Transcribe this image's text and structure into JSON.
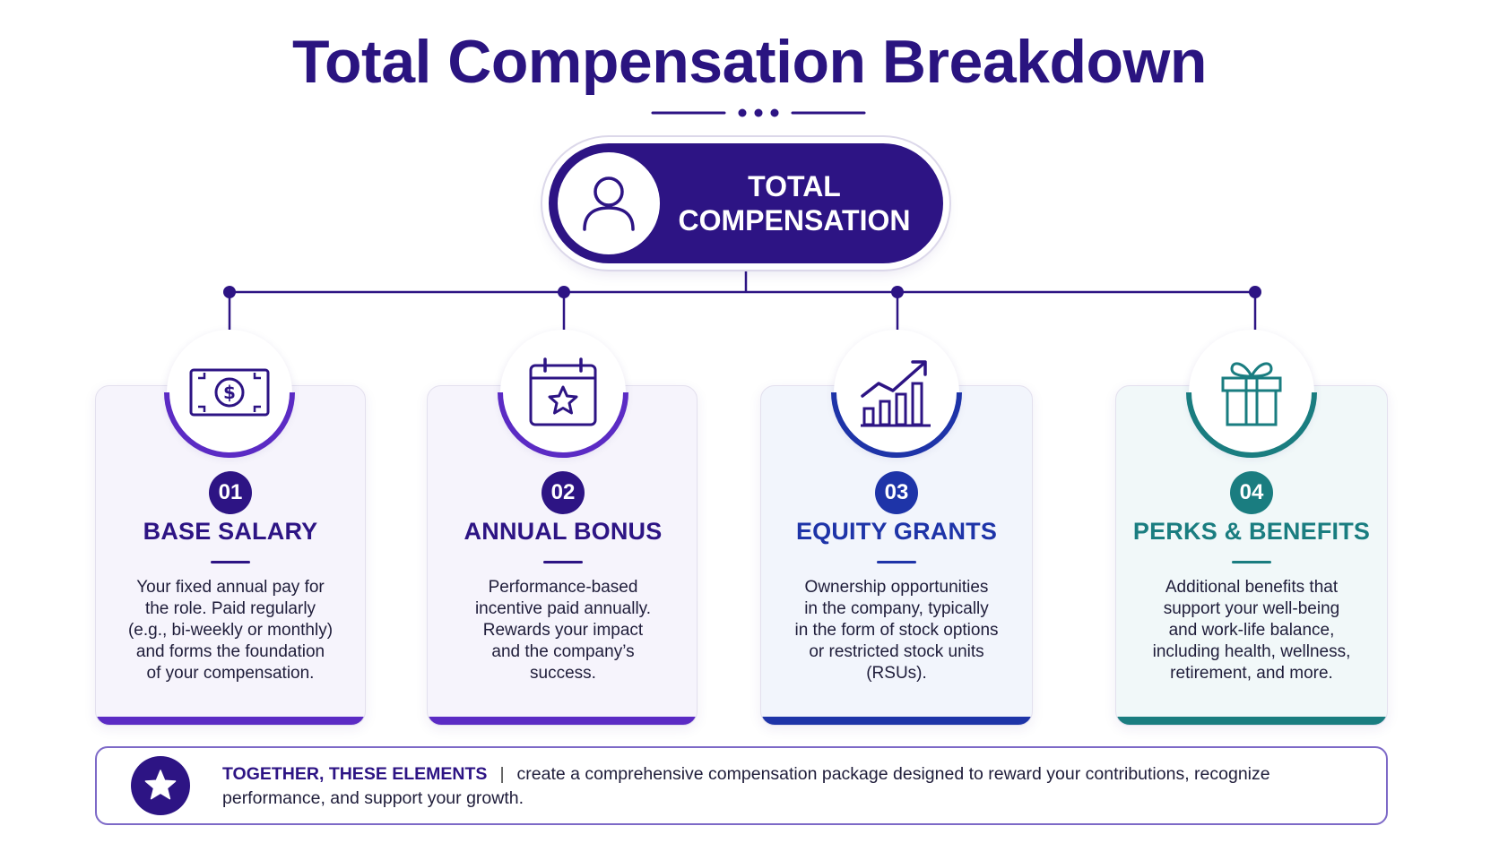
{
  "title": "Total Compensation Breakdown",
  "root": {
    "label": "TOTAL\nCOMPENSATION",
    "icon": "user-icon"
  },
  "colors": {
    "primary": "#2d1484",
    "purple_accent": "#5b2bc4",
    "blue_accent": "#1e34a8",
    "teal_accent": "#1a7d80",
    "connector": "#2d1484"
  },
  "components": [
    {
      "number": "01",
      "title": "BASE SALARY",
      "icon": "money-bill-icon",
      "description": "Your fixed annual pay for\nthe role. Paid regularly\n(e.g., bi-weekly or monthly)\nand forms the foundation\nof your compensation.",
      "accent": "#5b2bc4"
    },
    {
      "number": "02",
      "title": "ANNUAL BONUS",
      "icon": "calendar-star-icon",
      "description": "Performance-based\nincentive paid annually.\nRewards your impact\nand the company’s\nsuccess.",
      "accent": "#5b2bc4"
    },
    {
      "number": "03",
      "title": "EQUITY GRANTS",
      "icon": "growth-chart-icon",
      "description": "Ownership opportunities\nin the company, typically\nin the form of stock options\nor restricted stock units\n(RSUs).",
      "accent": "#1e34a8"
    },
    {
      "number": "04",
      "title": "PERKS & BENEFITS",
      "icon": "gift-icon",
      "description": "Additional benefits that\nsupport your well-being\nand work-life balance,\nincluding health, wellness,\nretirement, and more.",
      "accent": "#1a7d80"
    }
  ],
  "footer": {
    "lead": "TOGETHER, THESE ELEMENTS",
    "separator": "|",
    "text": "create a comprehensive compensation package designed to reward your contributions, recognize performance, and support your growth.",
    "icon": "star-icon"
  }
}
